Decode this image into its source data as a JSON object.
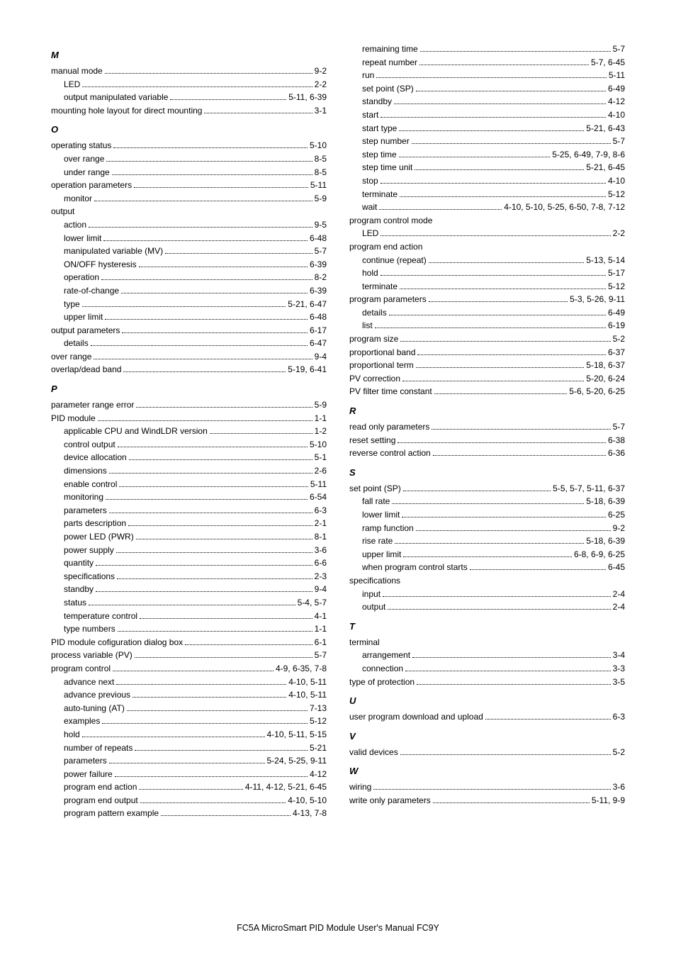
{
  "footer": "FC5A MicroSmart PID Module User's Manual FC9Y",
  "left": [
    {
      "type": "letter",
      "text": "M"
    },
    {
      "type": "entry",
      "indent": 0,
      "label": "manual mode",
      "page": "9-2"
    },
    {
      "type": "entry",
      "indent": 1,
      "label": "LED",
      "page": "2-2"
    },
    {
      "type": "entry",
      "indent": 1,
      "label": "output manipulated variable",
      "page": "5-11, 6-39"
    },
    {
      "type": "entry",
      "indent": 0,
      "label": "mounting hole layout for direct mounting",
      "page": "3-1"
    },
    {
      "type": "letter",
      "text": "O"
    },
    {
      "type": "entry",
      "indent": 0,
      "label": "operating status",
      "page": "5-10"
    },
    {
      "type": "entry",
      "indent": 1,
      "label": "over range",
      "page": "8-5"
    },
    {
      "type": "entry",
      "indent": 1,
      "label": "under range",
      "page": "8-5"
    },
    {
      "type": "entry",
      "indent": 0,
      "label": "operation parameters",
      "page": "5-11"
    },
    {
      "type": "entry",
      "indent": 1,
      "label": "monitor",
      "page": "5-9"
    },
    {
      "type": "entry",
      "indent": 0,
      "label": "output",
      "noref": true
    },
    {
      "type": "entry",
      "indent": 1,
      "label": "action",
      "page": "9-5"
    },
    {
      "type": "entry",
      "indent": 1,
      "label": "lower limit",
      "page": "6-48"
    },
    {
      "type": "entry",
      "indent": 1,
      "label": "manipulated variable (MV)",
      "page": "5-7"
    },
    {
      "type": "entry",
      "indent": 1,
      "label": "ON/OFF hysteresis",
      "page": "6-39"
    },
    {
      "type": "entry",
      "indent": 1,
      "label": "operation",
      "page": "8-2"
    },
    {
      "type": "entry",
      "indent": 1,
      "label": "rate-of-change",
      "page": "6-39"
    },
    {
      "type": "entry",
      "indent": 1,
      "label": "type",
      "page": "5-21, 6-47"
    },
    {
      "type": "entry",
      "indent": 1,
      "label": "upper limit",
      "page": "6-48"
    },
    {
      "type": "entry",
      "indent": 0,
      "label": "output parameters",
      "page": "6-17"
    },
    {
      "type": "entry",
      "indent": 1,
      "label": "details",
      "page": "6-47"
    },
    {
      "type": "entry",
      "indent": 0,
      "label": "over range",
      "page": "9-4"
    },
    {
      "type": "entry",
      "indent": 0,
      "label": "overlap/dead band",
      "page": "5-19, 6-41"
    },
    {
      "type": "letter",
      "text": "P"
    },
    {
      "type": "entry",
      "indent": 0,
      "label": "parameter range error",
      "page": "5-9"
    },
    {
      "type": "entry",
      "indent": 0,
      "label": "PID module",
      "page": "1-1"
    },
    {
      "type": "entry",
      "indent": 1,
      "label": "applicable CPU and WindLDR version",
      "page": "1-2"
    },
    {
      "type": "entry",
      "indent": 1,
      "label": "control output",
      "page": "5-10"
    },
    {
      "type": "entry",
      "indent": 1,
      "label": "device allocation",
      "page": "5-1"
    },
    {
      "type": "entry",
      "indent": 1,
      "label": "dimensions",
      "page": "2-6"
    },
    {
      "type": "entry",
      "indent": 1,
      "label": "enable control",
      "page": "5-11"
    },
    {
      "type": "entry",
      "indent": 1,
      "label": "monitoring",
      "page": "6-54"
    },
    {
      "type": "entry",
      "indent": 1,
      "label": "parameters",
      "page": "6-3"
    },
    {
      "type": "entry",
      "indent": 1,
      "label": "parts description",
      "page": "2-1"
    },
    {
      "type": "entry",
      "indent": 1,
      "label": "power LED (PWR)",
      "page": "8-1"
    },
    {
      "type": "entry",
      "indent": 1,
      "label": "power supply",
      "page": "3-6"
    },
    {
      "type": "entry",
      "indent": 1,
      "label": "quantity",
      "page": "6-6"
    },
    {
      "type": "entry",
      "indent": 1,
      "label": "specifications",
      "page": "2-3"
    },
    {
      "type": "entry",
      "indent": 1,
      "label": "standby",
      "page": "9-4"
    },
    {
      "type": "entry",
      "indent": 1,
      "label": "status",
      "page": "5-4, 5-7"
    },
    {
      "type": "entry",
      "indent": 1,
      "label": "temperature control",
      "page": "4-1"
    },
    {
      "type": "entry",
      "indent": 1,
      "label": "type numbers",
      "page": "1-1"
    },
    {
      "type": "entry",
      "indent": 0,
      "label": "PID module cofiguration dialog box",
      "page": "6-1"
    },
    {
      "type": "entry",
      "indent": 0,
      "label": "process variable (PV)",
      "page": "5-7"
    },
    {
      "type": "entry",
      "indent": 0,
      "label": "program control",
      "page": "4-9, 6-35, 7-8"
    },
    {
      "type": "entry",
      "indent": 1,
      "label": "advance next",
      "page": "4-10, 5-11"
    },
    {
      "type": "entry",
      "indent": 1,
      "label": "advance previous",
      "page": "4-10, 5-11"
    },
    {
      "type": "entry",
      "indent": 1,
      "label": "auto-tuning (AT)",
      "page": "7-13"
    },
    {
      "type": "entry",
      "indent": 1,
      "label": "examples",
      "page": "5-12"
    },
    {
      "type": "entry",
      "indent": 1,
      "label": "hold",
      "page": "4-10, 5-11, 5-15"
    },
    {
      "type": "entry",
      "indent": 1,
      "label": "number of repeats",
      "page": "5-21"
    },
    {
      "type": "entry",
      "indent": 1,
      "label": "parameters",
      "page": "5-24, 5-25, 9-11"
    },
    {
      "type": "entry",
      "indent": 1,
      "label": "power failure",
      "page": "4-12"
    },
    {
      "type": "entry",
      "indent": 1,
      "label": "program end action",
      "page": "4-11, 4-12, 5-21, 6-45"
    },
    {
      "type": "entry",
      "indent": 1,
      "label": "program end output",
      "page": "4-10, 5-10"
    },
    {
      "type": "entry",
      "indent": 1,
      "label": "program pattern example",
      "page": "4-13, 7-8"
    }
  ],
  "right": [
    {
      "type": "entry",
      "indent": 1,
      "label": "remaining time",
      "page": "5-7"
    },
    {
      "type": "entry",
      "indent": 1,
      "label": "repeat number",
      "page": "5-7, 6-45"
    },
    {
      "type": "entry",
      "indent": 1,
      "label": "run",
      "page": "5-11"
    },
    {
      "type": "entry",
      "indent": 1,
      "label": "set point (SP)",
      "page": "6-49"
    },
    {
      "type": "entry",
      "indent": 1,
      "label": "standby",
      "page": "4-12"
    },
    {
      "type": "entry",
      "indent": 1,
      "label": "start",
      "page": "4-10"
    },
    {
      "type": "entry",
      "indent": 1,
      "label": "start type",
      "page": "5-21, 6-43"
    },
    {
      "type": "entry",
      "indent": 1,
      "label": "step number",
      "page": "5-7"
    },
    {
      "type": "entry",
      "indent": 1,
      "label": "step time",
      "page": "5-25, 6-49, 7-9, 8-6"
    },
    {
      "type": "entry",
      "indent": 1,
      "label": "step time unit",
      "page": "5-21, 6-45"
    },
    {
      "type": "entry",
      "indent": 1,
      "label": "stop",
      "page": "4-10"
    },
    {
      "type": "entry",
      "indent": 1,
      "label": "terminate",
      "page": "5-12"
    },
    {
      "type": "entry",
      "indent": 1,
      "label": "wait",
      "page": "4-10, 5-10, 5-25, 6-50, 7-8, 7-12"
    },
    {
      "type": "entry",
      "indent": 0,
      "label": "program control mode",
      "noref": true
    },
    {
      "type": "entry",
      "indent": 1,
      "label": "LED",
      "page": "2-2"
    },
    {
      "type": "entry",
      "indent": 0,
      "label": "program end action",
      "noref": true
    },
    {
      "type": "entry",
      "indent": 1,
      "label": "continue (repeat)",
      "page": "5-13, 5-14"
    },
    {
      "type": "entry",
      "indent": 1,
      "label": "hold",
      "page": "5-17"
    },
    {
      "type": "entry",
      "indent": 1,
      "label": "terminate",
      "page": "5-12"
    },
    {
      "type": "entry",
      "indent": 0,
      "label": "program parameters",
      "page": "5-3, 5-26, 9-11"
    },
    {
      "type": "entry",
      "indent": 1,
      "label": "details",
      "page": "6-49"
    },
    {
      "type": "entry",
      "indent": 1,
      "label": "list",
      "page": "6-19"
    },
    {
      "type": "entry",
      "indent": 0,
      "label": "program size",
      "page": "5-2"
    },
    {
      "type": "entry",
      "indent": 0,
      "label": "proportional band",
      "page": "6-37"
    },
    {
      "type": "entry",
      "indent": 0,
      "label": "proportional term",
      "page": "5-18, 6-37"
    },
    {
      "type": "entry",
      "indent": 0,
      "label": "PV correction",
      "page": "5-20, 6-24"
    },
    {
      "type": "entry",
      "indent": 0,
      "label": "PV filter time constant",
      "page": "5-6, 5-20, 6-25"
    },
    {
      "type": "letter",
      "text": "R"
    },
    {
      "type": "entry",
      "indent": 0,
      "label": "read only parameters",
      "page": "5-7"
    },
    {
      "type": "entry",
      "indent": 0,
      "label": "reset setting",
      "page": "6-38"
    },
    {
      "type": "entry",
      "indent": 0,
      "label": "reverse control action",
      "page": "6-36"
    },
    {
      "type": "letter",
      "text": "S"
    },
    {
      "type": "entry",
      "indent": 0,
      "label": "set point (SP)",
      "page": "5-5, 5-7, 5-11, 6-37"
    },
    {
      "type": "entry",
      "indent": 1,
      "label": "fall rate",
      "page": "5-18, 6-39"
    },
    {
      "type": "entry",
      "indent": 1,
      "label": "lower limit",
      "page": "6-25"
    },
    {
      "type": "entry",
      "indent": 1,
      "label": "ramp function",
      "page": "9-2"
    },
    {
      "type": "entry",
      "indent": 1,
      "label": "rise rate",
      "page": "5-18, 6-39"
    },
    {
      "type": "entry",
      "indent": 1,
      "label": "upper limit",
      "page": "6-8, 6-9, 6-25"
    },
    {
      "type": "entry",
      "indent": 1,
      "label": "when program control starts",
      "page": "6-45"
    },
    {
      "type": "entry",
      "indent": 0,
      "label": "specifications",
      "noref": true
    },
    {
      "type": "entry",
      "indent": 1,
      "label": "input",
      "page": "2-4"
    },
    {
      "type": "entry",
      "indent": 1,
      "label": "output",
      "page": "2-4"
    },
    {
      "type": "letter",
      "text": "T"
    },
    {
      "type": "entry",
      "indent": 0,
      "label": "terminal",
      "noref": true
    },
    {
      "type": "entry",
      "indent": 1,
      "label": "arrangement",
      "page": "3-4"
    },
    {
      "type": "entry",
      "indent": 1,
      "label": "connection",
      "page": "3-3"
    },
    {
      "type": "entry",
      "indent": 0,
      "label": "type of protection",
      "page": "3-5"
    },
    {
      "type": "letter",
      "text": "U"
    },
    {
      "type": "entry",
      "indent": 0,
      "label": "user program download and upload",
      "page": "6-3"
    },
    {
      "type": "letter",
      "text": "V"
    },
    {
      "type": "entry",
      "indent": 0,
      "label": "valid devices",
      "page": "5-2"
    },
    {
      "type": "letter",
      "text": "W"
    },
    {
      "type": "entry",
      "indent": 0,
      "label": "wiring",
      "page": "3-6"
    },
    {
      "type": "entry",
      "indent": 0,
      "label": "write only parameters",
      "page": "5-11, 9-9"
    }
  ]
}
